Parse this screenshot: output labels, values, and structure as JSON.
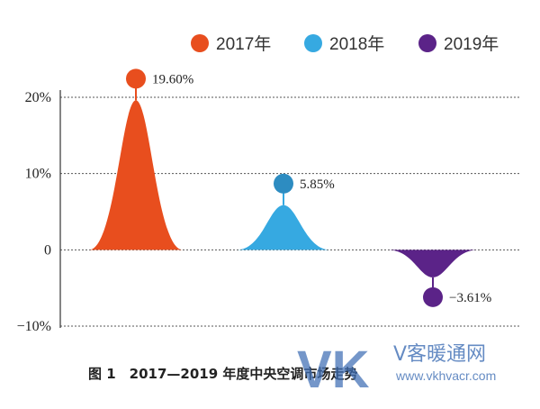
{
  "chart_data": {
    "type": "area",
    "categories": [
      "2017年",
      "2018年",
      "2019年"
    ],
    "values": [
      19.6,
      5.85,
      -3.61
    ],
    "data_labels": [
      "19.60%",
      "5.85%",
      "−3.61%"
    ],
    "colors": [
      "#e84e1e",
      "#36a9e1",
      "#5b2388"
    ],
    "marker_colors": [
      "#e84e1e",
      "#2d8cc1",
      "#5b2388"
    ],
    "ylim": [
      -10,
      20
    ],
    "yticks": [
      {
        "value": 20,
        "label": "20%"
      },
      {
        "value": 10,
        "label": "10%"
      },
      {
        "value": 0,
        "label": "0"
      },
      {
        "value": -10,
        "label": "−10%"
      }
    ],
    "grid": true,
    "legend": "top-right",
    "caption": "图 1　2017—2019 年度中央空调市场走势"
  },
  "watermark": {
    "logo": "VK",
    "brand": "V客暖通网",
    "url": "www.vkhvacr.com"
  }
}
